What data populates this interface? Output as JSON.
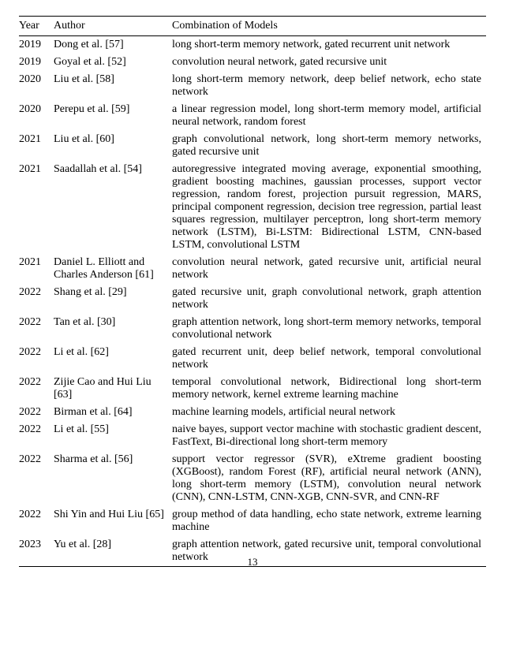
{
  "table": {
    "headers": {
      "year": "Year",
      "author": "Author",
      "combo": "Combination of Models"
    },
    "rows": [
      {
        "year": "2019",
        "author": "Dong et al. [57]",
        "combo": "long short-term memory network, gated recurrent unit network"
      },
      {
        "year": "2019",
        "author": "Goyal et al. [52]",
        "combo": "convolution neural network, gated recursive unit"
      },
      {
        "year": "2020",
        "author": "Liu et al. [58]",
        "combo": "long short-term memory network, deep belief network, echo state network"
      },
      {
        "year": "2020",
        "author": "Perepu et al. [59]",
        "combo": "a linear regression model, long short-term memory model, artificial neural network, random forest"
      },
      {
        "year": "2021",
        "author": "Liu et al. [60]",
        "combo": "graph convolutional network, long short-term memory networks, gated recursive unit"
      },
      {
        "year": "2021",
        "author": "Saadallah et al. [54]",
        "combo": "autoregressive integrated moving average, exponential smoothing, gradient boosting machines, gaussian processes, support vector regression, random forest, projection pursuit regression, MARS, principal component regression, decision tree regression, partial least squares regression, multilayer perceptron, long short-term memory network (LSTM), Bi-LSTM: Bidirectional LSTM, CNN-based LSTM, convolutional LSTM"
      },
      {
        "year": "2021",
        "author": "Daniel L. Elliott and Charles Anderson [61]",
        "combo": "convolution neural network, gated recursive unit, artificial neural network"
      },
      {
        "year": "2022",
        "author": "Shang et al. [29]",
        "combo": "gated recursive unit, graph convolutional network, graph attention network"
      },
      {
        "year": "2022",
        "author": "Tan et al. [30]",
        "combo": "graph attention network, long short-term memory networks, temporal convolutional network"
      },
      {
        "year": "2022",
        "author": "Li et al. [62]",
        "combo": "gated recurrent unit, deep belief network, temporal convolutional network"
      },
      {
        "year": "2022",
        "author": "Zijie Cao and Hui Liu [63]",
        "combo": "temporal convolutional network, Bidirectional long short-term memory network, kernel extreme learning machine"
      },
      {
        "year": "2022",
        "author": "Birman et al. [64]",
        "combo": "machine learning models, artificial neural network"
      },
      {
        "year": "2022",
        "author": "Li et al. [55]",
        "combo": "naive bayes, support vector machine with stochastic gradient descent, FastText, Bi-directional long short-term memory"
      },
      {
        "year": "2022",
        "author": "Sharma et al. [56]",
        "combo": "support vector regressor (SVR), eXtreme gradient boosting (XGBoost), random Forest (RF), artificial neural network (ANN), long short-term memory (LSTM), convolution neural network (CNN), CNN-LSTM, CNN-XGB, CNN-SVR, and CNN-RF"
      },
      {
        "year": "2022",
        "author": "Shi Yin and Hui Liu [65]",
        "combo": "group method of data handling, echo state network, extreme learning machine"
      },
      {
        "year": "2023",
        "author": "Yu et al. [28]",
        "combo": "graph attention network, gated recursive unit, temporal convolutional network"
      }
    ]
  },
  "page_number": "13"
}
